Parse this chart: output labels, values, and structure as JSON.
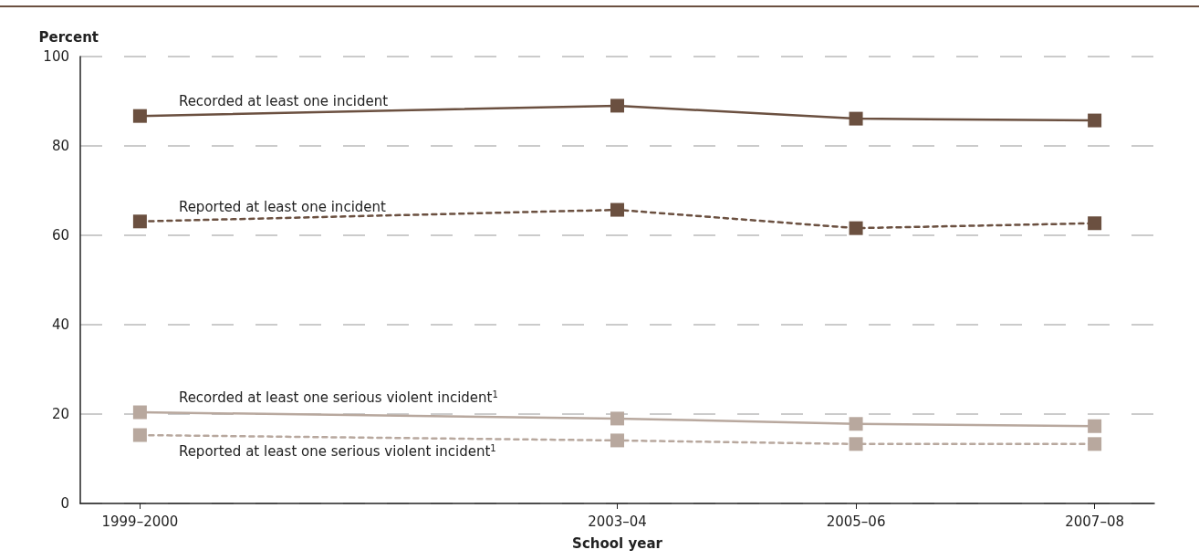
{
  "chart_data": {
    "type": "line",
    "xlabel": "School year",
    "ylabel": "Percent",
    "categories": [
      "1999–2000",
      null,
      null,
      null,
      "2003–04",
      null,
      "2005–06",
      null,
      "2007–08"
    ],
    "ylim": [
      0,
      100
    ],
    "yticks": [
      0,
      20,
      40,
      60,
      80,
      100
    ],
    "grid": "y",
    "legend": false,
    "marker": "square",
    "series": [
      {
        "name": "Recorded at least one incident",
        "color": "#6b5040",
        "values": [
          86.7,
          null,
          null,
          null,
          89.0,
          null,
          86.1,
          null,
          85.7
        ],
        "line_style": "solid"
      },
      {
        "name": "Reported at least one incident",
        "color": "#6b5040",
        "values": [
          63.1,
          null,
          null,
          null,
          65.7,
          null,
          61.6,
          null,
          62.7
        ],
        "line_style": "dashed"
      },
      {
        "name": "Recorded at least one serious violent incident$^{1}$",
        "color": "#b8a89e",
        "values": [
          20.4,
          null,
          null,
          null,
          19.0,
          null,
          17.8,
          null,
          17.3
        ],
        "line_style": "solid"
      },
      {
        "name": "Reported at least one serious violent incident$^{1}$",
        "color": "#b8a89e",
        "values": [
          15.3,
          null,
          null,
          null,
          14.1,
          null,
          13.3,
          null,
          13.3
        ],
        "line_style": "dashed"
      }
    ]
  }
}
